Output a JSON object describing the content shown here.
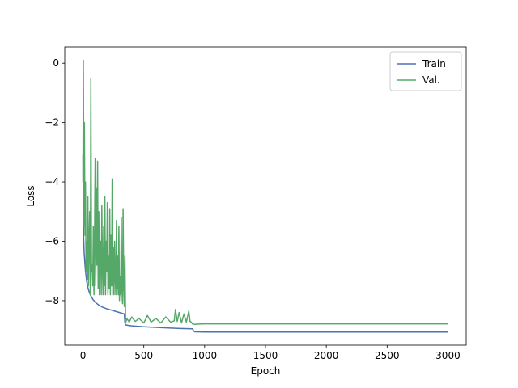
{
  "chart_data": {
    "type": "line",
    "title": "",
    "xlabel": "Epoch",
    "ylabel": "Loss",
    "xlim": [
      -150,
      3150
    ],
    "ylim": [
      -9.5,
      0.55
    ],
    "xticks": [
      0,
      500,
      1000,
      1500,
      2000,
      2500,
      3000
    ],
    "yticks": [
      0,
      -2,
      -4,
      -6,
      -8
    ],
    "ytick_labels": [
      "0",
      "−2",
      "−4",
      "−6",
      "−8"
    ],
    "grid": false,
    "legend_position": "top-right",
    "series": [
      {
        "name": "Train",
        "color": "#4c72b0",
        "x": [
          0,
          5,
          10,
          20,
          30,
          40,
          50,
          60,
          80,
          100,
          130,
          160,
          200,
          250,
          300,
          340,
          345,
          350,
          400,
          500,
          600,
          700,
          800,
          900,
          910,
          920,
          1000,
          1200,
          1500,
          2000,
          2500,
          3000
        ],
        "y": [
          -3.1,
          -5.8,
          -6.4,
          -7.0,
          -7.35,
          -7.55,
          -7.7,
          -7.8,
          -7.95,
          -8.05,
          -8.15,
          -8.22,
          -8.28,
          -8.34,
          -8.4,
          -8.45,
          -8.75,
          -8.82,
          -8.85,
          -8.88,
          -8.9,
          -8.92,
          -8.94,
          -8.95,
          -9.02,
          -9.05,
          -9.06,
          -9.06,
          -9.06,
          -9.06,
          -9.06,
          -9.06
        ]
      },
      {
        "name": "Val.",
        "color": "#55a868",
        "x": [
          0,
          3,
          6,
          9,
          12,
          16,
          20,
          25,
          30,
          35,
          40,
          45,
          50,
          55,
          60,
          65,
          70,
          75,
          80,
          85,
          90,
          95,
          100,
          105,
          110,
          115,
          120,
          125,
          130,
          135,
          140,
          145,
          150,
          155,
          160,
          165,
          170,
          175,
          180,
          185,
          190,
          195,
          200,
          205,
          210,
          215,
          220,
          225,
          230,
          235,
          240,
          245,
          250,
          255,
          260,
          265,
          270,
          275,
          280,
          285,
          290,
          295,
          300,
          305,
          310,
          315,
          320,
          325,
          330,
          335,
          340,
          345,
          350,
          360,
          380,
          400,
          430,
          460,
          500,
          530,
          560,
          600,
          640,
          680,
          720,
          750,
          760,
          775,
          790,
          810,
          830,
          850,
          870,
          880,
          890,
          900,
          920,
          950,
          1000,
          1200,
          1500,
          2000,
          2500,
          3000
        ],
        "y": [
          -4.0,
          0.1,
          -3.0,
          -5.5,
          -2.0,
          -5.8,
          -4.0,
          -7.0,
          -6.0,
          -7.3,
          -4.5,
          -7.5,
          -6.0,
          -5.0,
          -7.8,
          -0.5,
          -7.0,
          -6.8,
          -7.5,
          -5.5,
          -7.8,
          -6.0,
          -3.2,
          -7.5,
          -4.2,
          -6.8,
          -3.3,
          -7.6,
          -5.0,
          -7.8,
          -6.2,
          -6.0,
          -7.8,
          -4.8,
          -7.0,
          -7.8,
          -5.5,
          -7.5,
          -4.5,
          -7.8,
          -6.0,
          -7.0,
          -4.7,
          -7.8,
          -6.5,
          -7.6,
          -4.9,
          -7.8,
          -5.8,
          -7.5,
          -3.9,
          -7.8,
          -6.2,
          -7.8,
          -6.0,
          -7.2,
          -7.8,
          -5.3,
          -7.6,
          -6.5,
          -7.8,
          -5.5,
          -8.0,
          -7.2,
          -7.8,
          -5.2,
          -7.6,
          -8.1,
          -4.9,
          -7.5,
          -8.2,
          -6.5,
          -8.75,
          -8.6,
          -8.72,
          -8.55,
          -8.7,
          -8.6,
          -8.75,
          -8.5,
          -8.72,
          -8.6,
          -8.75,
          -8.55,
          -8.72,
          -8.68,
          -8.3,
          -8.7,
          -8.4,
          -8.75,
          -8.45,
          -8.72,
          -8.35,
          -8.7,
          -8.72,
          -8.78,
          -8.8,
          -8.79,
          -8.78,
          -8.78,
          -8.78,
          -8.78,
          -8.78,
          -8.78
        ]
      }
    ]
  }
}
